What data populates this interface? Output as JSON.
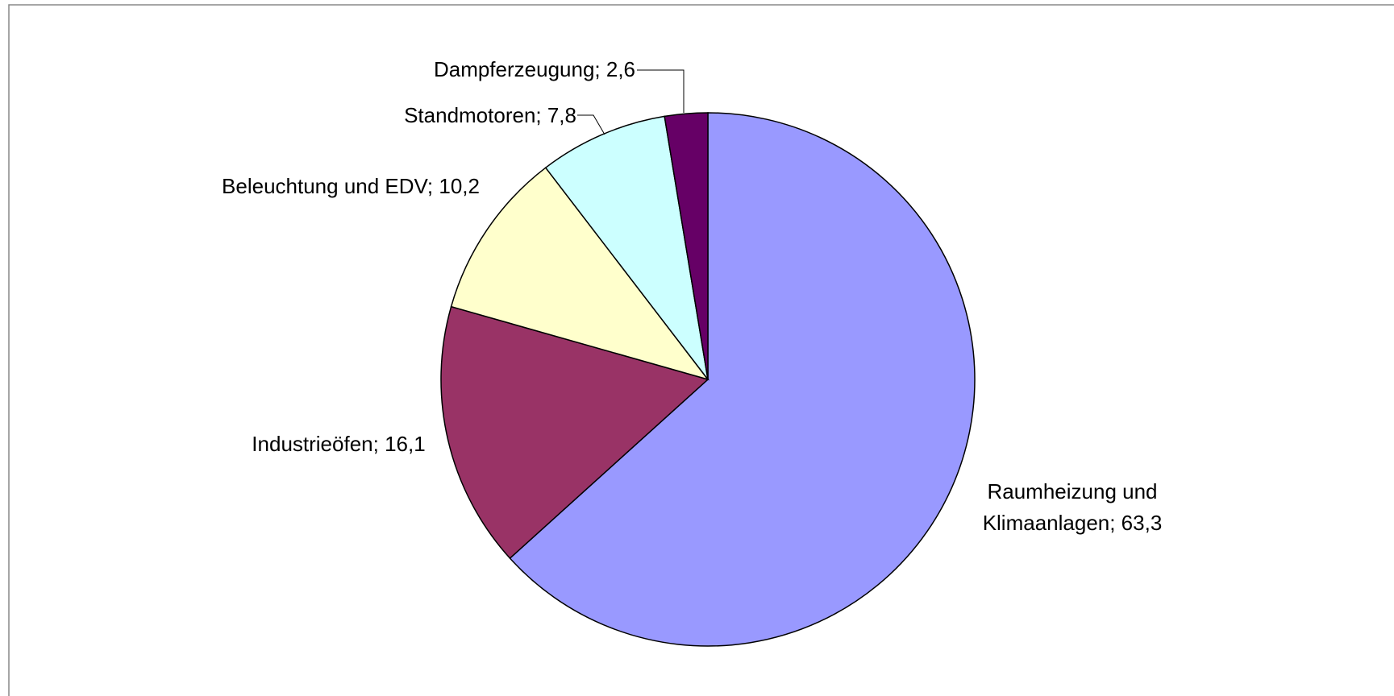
{
  "chart_data": {
    "type": "pie",
    "values": [
      63.3,
      16.1,
      10.2,
      7.8,
      2.6
    ],
    "value_labels": [
      "Raumheizung und Klimaanlagen; 63,3",
      "Industrieöfen; 16,1",
      "Beleuchtung und EDV; 10,2",
      "Standmotoren; 7,8",
      "Dampferzeugung; 2,6"
    ],
    "colors": [
      "#9999ff",
      "#993366",
      "#ffffcc",
      "#ccffff",
      "#660066"
    ]
  }
}
